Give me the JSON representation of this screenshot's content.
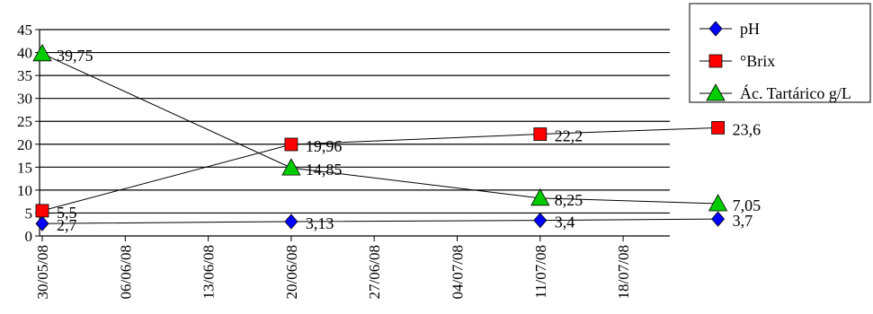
{
  "chart_data": {
    "type": "line",
    "title": "",
    "xlabel": "",
    "ylabel": "",
    "ylim": [
      0,
      45
    ],
    "y_ticks": [
      "0",
      "5",
      "10",
      "15",
      "20",
      "25",
      "30",
      "35",
      "40",
      "45"
    ],
    "x_ticks": [
      "30/05/08",
      "06/06/08",
      "13/06/08",
      "20/06/08",
      "27/06/08",
      "04/07/08",
      "11/07/08",
      "18/07/08"
    ],
    "x_tick_dates": [
      "2008-05-30",
      "2008-06-06",
      "2008-06-13",
      "2008-06-20",
      "2008-06-27",
      "2008-07-04",
      "2008-07-11",
      "2008-07-18"
    ],
    "x": [
      "2008-05-30",
      "2008-06-20",
      "2008-07-11",
      "2008-07-26"
    ],
    "grid": true,
    "legend_position": "top-right",
    "series": [
      {
        "name": "pH",
        "marker": "diamond",
        "color": "#0000ff",
        "values": [
          2.7,
          3.13,
          3.4,
          3.7
        ],
        "labels": [
          "2,7",
          "3,13",
          "3,4",
          "3,7"
        ]
      },
      {
        "name": "°Brix",
        "marker": "square",
        "color": "#ff0000",
        "values": [
          5.5,
          19.96,
          22.2,
          23.6
        ],
        "labels": [
          "5,5",
          "19,96",
          "22,2",
          "23,6"
        ]
      },
      {
        "name": "Ác. Tartárico g/L",
        "marker": "triangle",
        "color": "#00cc00",
        "values": [
          39.75,
          14.85,
          8.25,
          7.05
        ],
        "labels": [
          "39,75",
          "14,85",
          "8,25",
          "7,05"
        ]
      }
    ]
  }
}
